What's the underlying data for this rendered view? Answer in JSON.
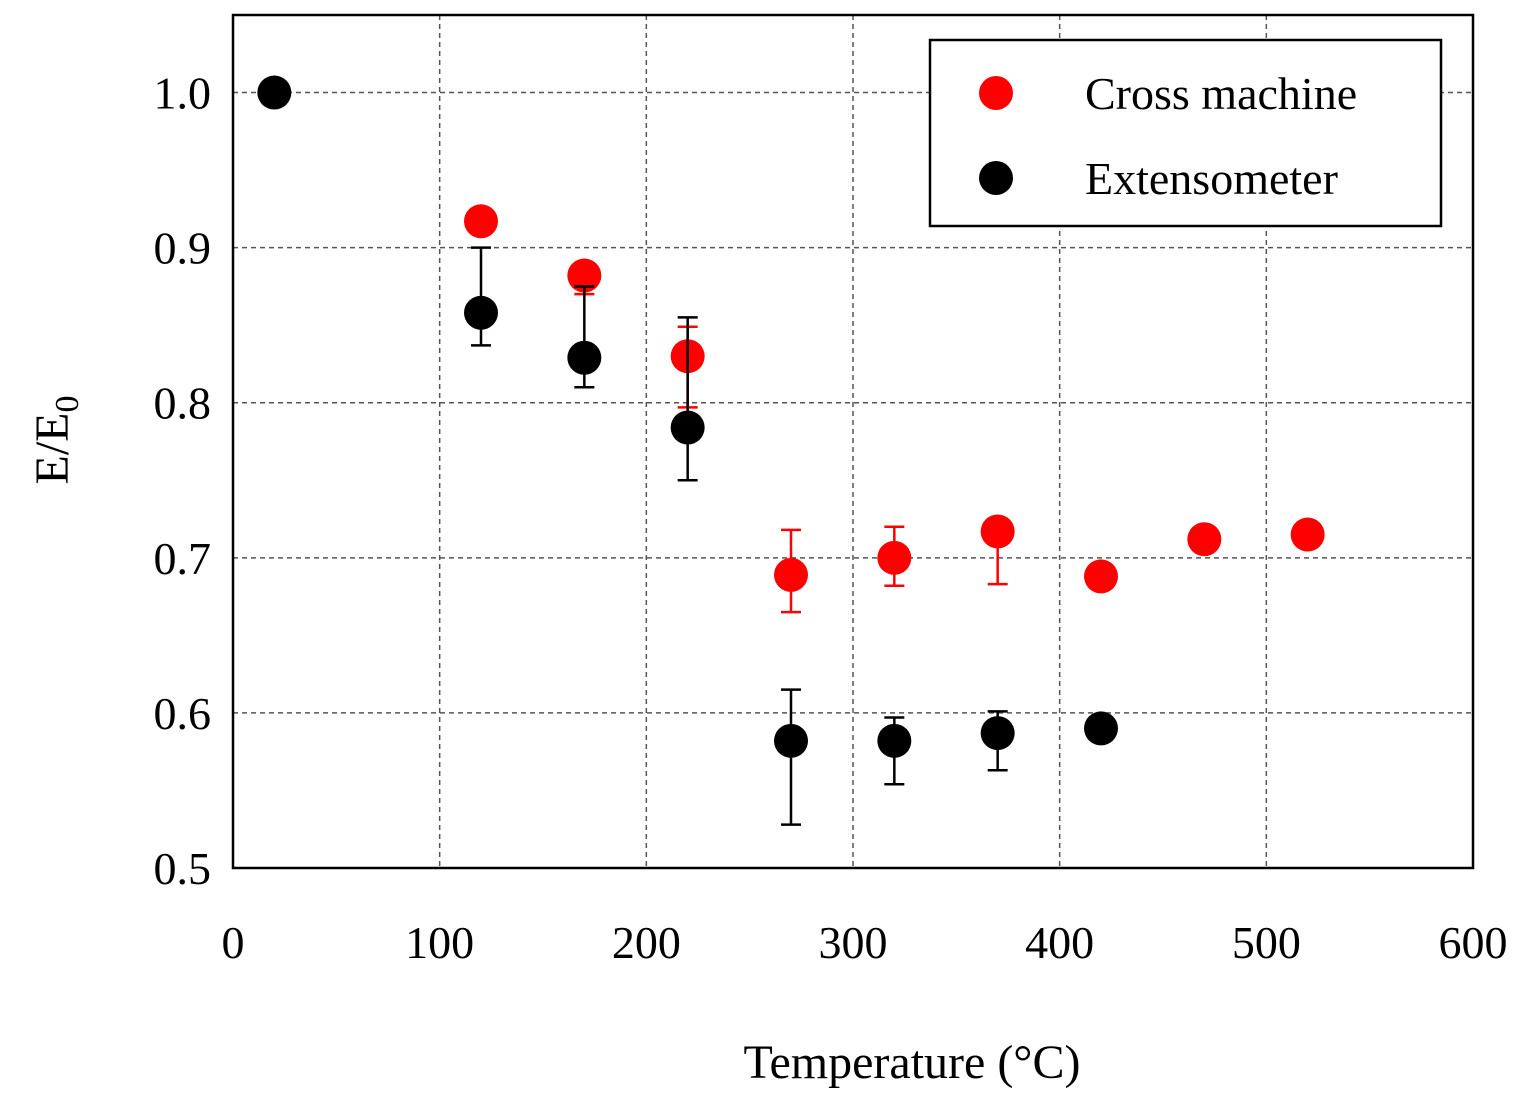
{
  "chart_data": {
    "type": "scatter",
    "xlabel": "Temperature (°C)",
    "ylabel": "E/E",
    "ylabel_subscript": "0",
    "xlim": [
      0,
      600
    ],
    "xticks": [
      0,
      100,
      200,
      300,
      400,
      500,
      600
    ],
    "ylim": [
      0.5,
      1.05
    ],
    "yticks": [
      0.5,
      0.6,
      0.7,
      0.8,
      0.9,
      {
        "value": 1,
        "label": "1.0"
      }
    ],
    "grid": true,
    "legend": "upper right",
    "series": [
      {
        "name": "Cross machine",
        "color": "#ff0000",
        "x": [
          120,
          170,
          220,
          270,
          320,
          370,
          420,
          470,
          520
        ],
        "values": [
          0.917,
          0.882,
          0.83,
          0.689,
          0.7,
          0.717,
          0.688,
          0.712,
          0.715
        ],
        "error_minus": [
          null,
          0.012,
          0.033,
          0.024,
          0.018,
          0.034,
          null,
          null,
          null
        ],
        "error_plus": [
          null,
          0.006,
          0.019,
          0.029,
          0.02,
          0.005,
          null,
          null,
          null
        ]
      },
      {
        "name": "Extensometer",
        "color": "#000000",
        "x": [
          20,
          120,
          170,
          220,
          270,
          320,
          370,
          420
        ],
        "values": [
          1,
          0.858,
          0.829,
          0.784,
          0.582,
          0.582,
          0.587,
          0.59
        ],
        "error_minus": [
          null,
          0.021,
          0.019,
          0.034,
          0.054,
          0.028,
          0.024,
          null
        ],
        "error_plus": [
          null,
          0.042,
          0.046,
          0.071,
          0.033,
          0.015,
          0.014,
          null
        ]
      }
    ]
  }
}
